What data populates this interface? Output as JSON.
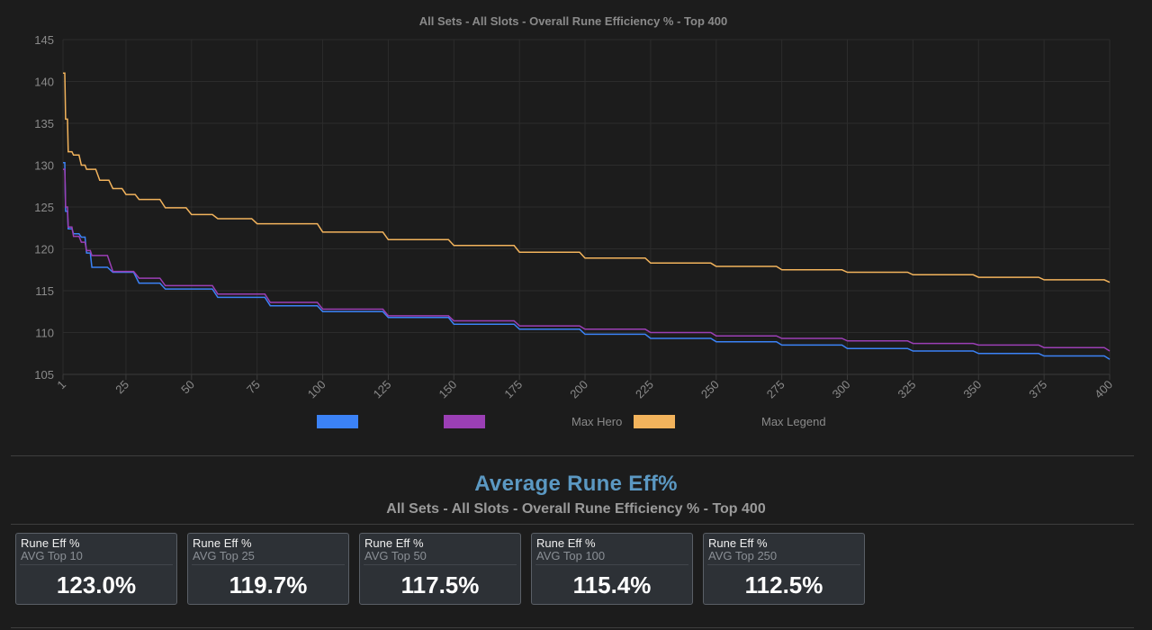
{
  "chart_data": {
    "type": "line",
    "title": "All Sets - All Slots - Overall Rune Efficiency % - Top 400",
    "xlim": [
      1,
      400
    ],
    "ylim": [
      105,
      145
    ],
    "x_ticks": [
      1,
      25,
      50,
      75,
      100,
      125,
      150,
      175,
      200,
      225,
      250,
      275,
      300,
      325,
      350,
      375,
      400
    ],
    "y_ticks": [
      105,
      110,
      115,
      120,
      125,
      130,
      135,
      140,
      145
    ],
    "grid": true,
    "legend_position": "bottom",
    "series": [
      {
        "name": "",
        "color": "#3b82f6",
        "x": [
          1,
          2,
          3,
          5,
          8,
          10,
          12,
          20,
          30,
          40,
          60,
          80,
          100,
          125,
          150,
          175,
          200,
          225,
          250,
          275,
          300,
          325,
          350,
          375,
          400
        ],
        "y": [
          130.3,
          124.5,
          122.4,
          121.8,
          121.4,
          119.5,
          117.8,
          117.2,
          115.9,
          115.2,
          114.2,
          113.2,
          112.5,
          111.8,
          111.0,
          110.4,
          109.8,
          109.3,
          108.9,
          108.5,
          108.1,
          107.8,
          107.5,
          107.2,
          106.8
        ]
      },
      {
        "name": "",
        "color": "#9b3fb5",
        "x": [
          1,
          2,
          3,
          5,
          8,
          10,
          12,
          20,
          30,
          40,
          60,
          80,
          100,
          125,
          150,
          175,
          200,
          225,
          250,
          275,
          300,
          325,
          350,
          375,
          400
        ],
        "y": [
          129.5,
          125.0,
          122.6,
          121.5,
          120.8,
          119.8,
          119.2,
          117.3,
          116.5,
          115.6,
          114.6,
          113.6,
          112.8,
          112.0,
          111.4,
          110.8,
          110.4,
          110.0,
          109.6,
          109.3,
          109.0,
          108.7,
          108.5,
          108.2,
          107.8
        ]
      },
      {
        "name": "Max Hero",
        "color": "#f2b35c",
        "x": [
          1,
          2,
          3,
          5,
          8,
          10,
          15,
          20,
          25,
          30,
          40,
          50,
          60,
          75,
          100,
          125,
          150,
          175,
          200,
          225,
          250,
          275,
          300,
          325,
          350,
          375,
          400
        ],
        "y": [
          141.0,
          135.5,
          131.6,
          131.2,
          130.0,
          129.5,
          128.2,
          127.2,
          126.5,
          125.9,
          124.9,
          124.1,
          123.6,
          123.0,
          122.0,
          121.1,
          120.4,
          119.6,
          118.9,
          118.3,
          117.9,
          117.5,
          117.2,
          116.9,
          116.6,
          116.3,
          116.0
        ]
      },
      {
        "name": "Max Legend",
        "color": "",
        "x": [],
        "y": []
      }
    ]
  },
  "summary": {
    "title": "Average Rune Eff%",
    "subtitle": "All Sets - All Slots - Overall Rune Efficiency % - Top 400",
    "cards": [
      {
        "label": "Rune Eff %",
        "sub": "AVG Top 10",
        "value": "123.0%"
      },
      {
        "label": "Rune Eff %",
        "sub": "AVG Top 25",
        "value": "119.7%"
      },
      {
        "label": "Rune Eff %",
        "sub": "AVG Top 50",
        "value": "117.5%"
      },
      {
        "label": "Rune Eff %",
        "sub": "AVG Top 100",
        "value": "115.4%"
      },
      {
        "label": "Rune Eff %",
        "sub": "AVG Top 250",
        "value": "112.5%"
      }
    ]
  }
}
